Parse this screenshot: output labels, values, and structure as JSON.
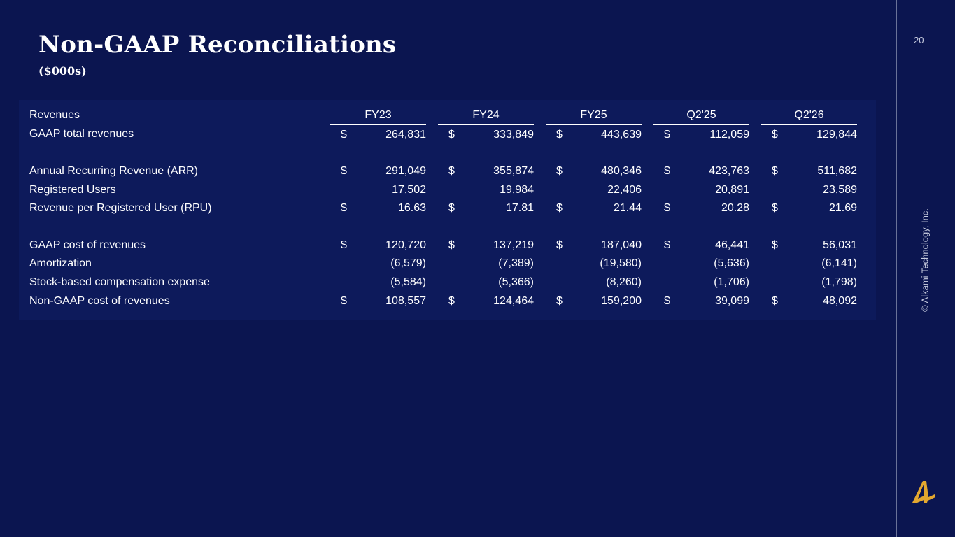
{
  "slide": {
    "title": "Non-GAAP Reconciliations",
    "subtitle": "($000s)",
    "page_number": "20",
    "copyright": "© Alkami Technology, Inc.",
    "background_color": "#0b1550",
    "logo_color": "#e3a72f"
  },
  "table": {
    "header_label": "Revenues",
    "columns": [
      "FY23",
      "FY24",
      "FY25",
      "Q2'25",
      "Q2'26"
    ],
    "rows": [
      {
        "label": "GAAP total revenues",
        "cur": [
          "$",
          "$",
          "$",
          "$",
          "$"
        ],
        "values": [
          "264,831",
          "333,849",
          "443,639",
          "112,059",
          "129,844"
        ]
      },
      {
        "label": "Annual Recurring Revenue (ARR)",
        "cur": [
          "$",
          "$",
          "$",
          "$",
          "$"
        ],
        "values": [
          "291,049",
          "355,874",
          "480,346",
          "423,763",
          "511,682"
        ]
      },
      {
        "label": "Registered Users",
        "cur": [
          "",
          "",
          "",
          "",
          ""
        ],
        "values": [
          "17,502",
          "19,984",
          "22,406",
          "20,891",
          "23,589"
        ]
      },
      {
        "label": "Revenue per Registered User (RPU)",
        "cur": [
          "$",
          "$",
          "$",
          "$",
          "$"
        ],
        "values": [
          "16.63",
          "17.81",
          "21.44",
          "20.28",
          "21.69"
        ]
      },
      {
        "label": "GAAP cost of revenues",
        "cur": [
          "$",
          "$",
          "$",
          "$",
          "$"
        ],
        "values": [
          "120,720",
          "137,219",
          "187,040",
          "46,441",
          "56,031"
        ]
      },
      {
        "label": "Amortization",
        "cur": [
          "",
          "",
          "",
          "",
          ""
        ],
        "values": [
          "(6,579)",
          "(7,389)",
          "(19,580)",
          "(5,636)",
          "(6,141)"
        ]
      },
      {
        "label": "Stock-based compensation expense",
        "cur": [
          "",
          "",
          "",
          "",
          ""
        ],
        "values": [
          "(5,584)",
          "(5,366)",
          "(8,260)",
          "(1,706)",
          "(1,798)"
        ]
      },
      {
        "label": "Non-GAAP cost of revenues",
        "cur": [
          "$",
          "$",
          "$",
          "$",
          "$"
        ],
        "values": [
          "108,557",
          "124,464",
          "159,200",
          "39,099",
          "48,092"
        ]
      }
    ]
  }
}
